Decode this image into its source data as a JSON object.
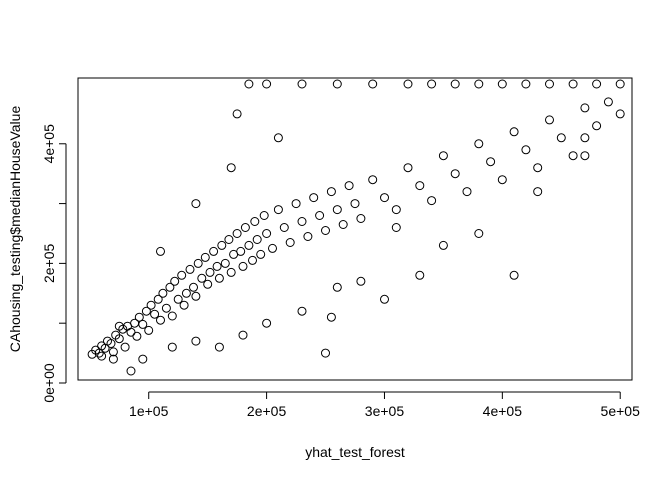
{
  "chart_data": {
    "type": "scatter",
    "title": "",
    "xlabel": "yhat_test_forest",
    "ylabel": "CAhousing_testing$medianHouseValue",
    "xlim": [
      40000,
      510000
    ],
    "ylim": [
      5000,
      510000
    ],
    "x_ticks": [
      100000,
      200000,
      300000,
      400000,
      500000
    ],
    "x_tick_labels": [
      "1e+05",
      "2e+05",
      "3e+05",
      "4e+05",
      "5e+05"
    ],
    "y_ticks": [
      0,
      100000,
      200000,
      300000,
      400000
    ],
    "y_tick_labels": [
      "0e+00",
      "",
      "2e+05",
      "",
      "4e+05"
    ],
    "marker": "open-circle",
    "grid": false,
    "series": [
      {
        "points": [
          [
            52000,
            48000
          ],
          [
            55000,
            55000
          ],
          [
            58000,
            50000
          ],
          [
            60000,
            62000
          ],
          [
            63000,
            58000
          ],
          [
            65000,
            70000
          ],
          [
            68000,
            66000
          ],
          [
            70000,
            52000
          ],
          [
            72000,
            80000
          ],
          [
            75000,
            74000
          ],
          [
            78000,
            90000
          ],
          [
            80000,
            60000
          ],
          [
            82000,
            95000
          ],
          [
            85000,
            85000
          ],
          [
            88000,
            100000
          ],
          [
            90000,
            78000
          ],
          [
            92000,
            110000
          ],
          [
            95000,
            98000
          ],
          [
            98000,
            120000
          ],
          [
            100000,
            88000
          ],
          [
            102000,
            130000
          ],
          [
            105000,
            115000
          ],
          [
            108000,
            140000
          ],
          [
            110000,
            105000
          ],
          [
            112000,
            150000
          ],
          [
            115000,
            125000
          ],
          [
            118000,
            160000
          ],
          [
            120000,
            112000
          ],
          [
            122000,
            170000
          ],
          [
            125000,
            140000
          ],
          [
            128000,
            180000
          ],
          [
            130000,
            130000
          ],
          [
            132000,
            150000
          ],
          [
            135000,
            190000
          ],
          [
            138000,
            160000
          ],
          [
            140000,
            145000
          ],
          [
            142000,
            200000
          ],
          [
            145000,
            175000
          ],
          [
            148000,
            210000
          ],
          [
            150000,
            165000
          ],
          [
            152000,
            185000
          ],
          [
            155000,
            220000
          ],
          [
            158000,
            195000
          ],
          [
            160000,
            175000
          ],
          [
            162000,
            230000
          ],
          [
            165000,
            200000
          ],
          [
            168000,
            240000
          ],
          [
            170000,
            185000
          ],
          [
            172000,
            215000
          ],
          [
            175000,
            250000
          ],
          [
            178000,
            220000
          ],
          [
            180000,
            195000
          ],
          [
            182000,
            260000
          ],
          [
            185000,
            230000
          ],
          [
            188000,
            205000
          ],
          [
            190000,
            270000
          ],
          [
            192000,
            240000
          ],
          [
            195000,
            215000
          ],
          [
            198000,
            280000
          ],
          [
            200000,
            250000
          ],
          [
            205000,
            225000
          ],
          [
            210000,
            290000
          ],
          [
            215000,
            260000
          ],
          [
            220000,
            235000
          ],
          [
            225000,
            300000
          ],
          [
            230000,
            270000
          ],
          [
            235000,
            245000
          ],
          [
            240000,
            310000
          ],
          [
            245000,
            280000
          ],
          [
            250000,
            255000
          ],
          [
            255000,
            320000
          ],
          [
            260000,
            290000
          ],
          [
            265000,
            265000
          ],
          [
            270000,
            330000
          ],
          [
            275000,
            300000
          ],
          [
            280000,
            275000
          ],
          [
            290000,
            340000
          ],
          [
            300000,
            310000
          ],
          [
            310000,
            290000
          ],
          [
            320000,
            360000
          ],
          [
            330000,
            330000
          ],
          [
            340000,
            305000
          ],
          [
            350000,
            380000
          ],
          [
            360000,
            350000
          ],
          [
            370000,
            320000
          ],
          [
            380000,
            400000
          ],
          [
            390000,
            370000
          ],
          [
            400000,
            340000
          ],
          [
            410000,
            420000
          ],
          [
            420000,
            390000
          ],
          [
            430000,
            360000
          ],
          [
            440000,
            440000
          ],
          [
            450000,
            410000
          ],
          [
            460000,
            380000
          ],
          [
            470000,
            460000
          ],
          [
            480000,
            430000
          ],
          [
            490000,
            470000
          ],
          [
            500000,
            450000
          ],
          [
            200000,
            500000
          ],
          [
            230000,
            500000
          ],
          [
            260000,
            500000
          ],
          [
            290000,
            500000
          ],
          [
            320000,
            500000
          ],
          [
            340000,
            500000
          ],
          [
            360000,
            500000
          ],
          [
            380000,
            500000
          ],
          [
            400000,
            500000
          ],
          [
            420000,
            500000
          ],
          [
            440000,
            500000
          ],
          [
            460000,
            500000
          ],
          [
            480000,
            500000
          ],
          [
            500000,
            500000
          ],
          [
            110000,
            220000
          ],
          [
            140000,
            300000
          ],
          [
            170000,
            360000
          ],
          [
            175000,
            450000
          ],
          [
            185000,
            500000
          ],
          [
            210000,
            410000
          ],
          [
            260000,
            160000
          ],
          [
            300000,
            140000
          ],
          [
            310000,
            260000
          ],
          [
            330000,
            180000
          ],
          [
            350000,
            230000
          ],
          [
            380000,
            250000
          ],
          [
            410000,
            180000
          ],
          [
            430000,
            320000
          ],
          [
            470000,
            410000
          ],
          [
            470000,
            380000
          ],
          [
            250000,
            50000
          ],
          [
            160000,
            60000
          ],
          [
            180000,
            80000
          ],
          [
            200000,
            100000
          ],
          [
            230000,
            120000
          ],
          [
            255000,
            110000
          ],
          [
            280000,
            170000
          ],
          [
            95000,
            40000
          ],
          [
            85000,
            20000
          ],
          [
            60000,
            45000
          ],
          [
            70000,
            40000
          ],
          [
            75000,
            95000
          ],
          [
            120000,
            60000
          ],
          [
            140000,
            70000
          ]
        ]
      }
    ]
  }
}
